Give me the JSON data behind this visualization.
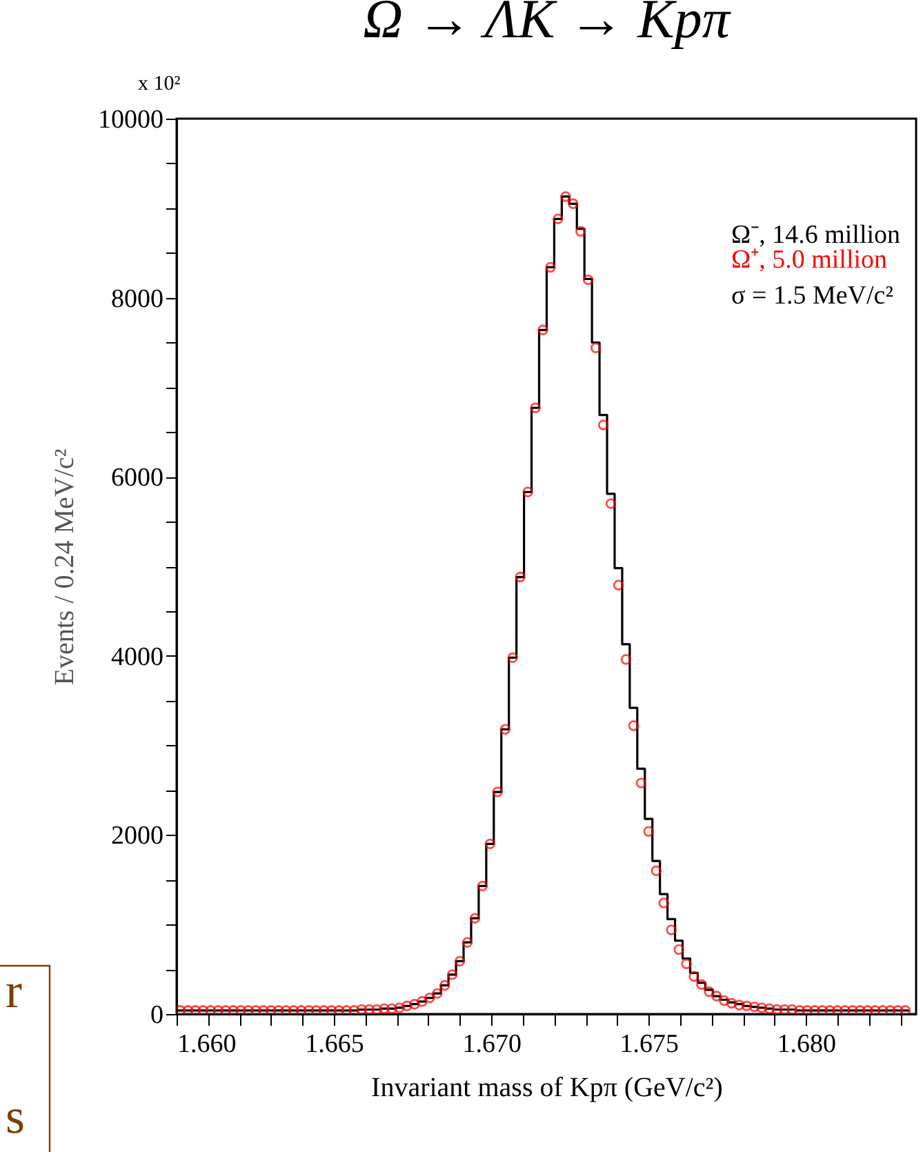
{
  "chart_data": {
    "type": "histogram",
    "title": "Ω → ΛK → Kpπ",
    "xlabel": "Invariant mass of Kpπ  (GeV/c²)",
    "ylabel": "Events / 0.24 MeV/c²",
    "annotations": [
      "x 10²",
      "σ = 1.5 MeV/c²",
      "r",
      "s"
    ],
    "bins": [
      1.66,
      1.66024,
      1.66048,
      1.66072,
      1.66096,
      1.6612,
      1.66144,
      1.66168,
      1.66192,
      1.66216,
      1.6624,
      1.66264,
      1.66288,
      1.66312,
      1.66336,
      1.6636,
      1.66384,
      1.66408,
      1.66432,
      1.66456,
      1.6648,
      1.66504,
      1.66528,
      1.66552,
      1.66576,
      1.666,
      1.66624,
      1.66648,
      1.66672,
      1.66696,
      1.6672,
      1.66744,
      1.66768,
      1.66792,
      1.66816,
      1.6684,
      1.66864,
      1.66888,
      1.66912,
      1.66936,
      1.6696,
      1.66984,
      1.67008,
      1.67032,
      1.67056,
      1.6708,
      1.67104,
      1.67128,
      1.67152,
      1.67176,
      1.672,
      1.67224,
      1.67248,
      1.67272,
      1.67296,
      1.6732,
      1.67344,
      1.67368,
      1.67392,
      1.67416,
      1.6744,
      1.67464,
      1.67488,
      1.67512,
      1.67536,
      1.6756,
      1.67584,
      1.67608,
      1.67632,
      1.67656,
      1.6768,
      1.67704,
      1.67728,
      1.67752,
      1.67776,
      1.678,
      1.67824,
      1.67848,
      1.67872,
      1.67896,
      1.6792,
      1.67944,
      1.67968,
      1.67992,
      1.68016,
      1.6804,
      1.68064,
      1.68088,
      1.68112,
      1.68136,
      1.6816,
      1.68184,
      1.68208,
      1.68232,
      1.68256,
      1.6828,
      1.68304,
      1.68328
    ],
    "series": [
      {
        "name": "Ω⁻, 14.6 million",
        "color": "#000000",
        "values": [
          40,
          40,
          40,
          40,
          40,
          40,
          40,
          40,
          40,
          40,
          40,
          40,
          40,
          40,
          40,
          40,
          40,
          40,
          40,
          40,
          40,
          40,
          40,
          40,
          50,
          50,
          50,
          60,
          60,
          70,
          90,
          110,
          140,
          180,
          230,
          320,
          440,
          590,
          800,
          1070,
          1430,
          1900,
          2480,
          3180,
          3980,
          4880,
          5830,
          6770,
          7640,
          8340,
          8880,
          9130,
          9050,
          8770,
          8210,
          7500,
          6690,
          5810,
          4980,
          4130,
          3420,
          2740,
          2180,
          1710,
          1340,
          1060,
          820,
          620,
          460,
          350,
          270,
          200,
          160,
          130,
          110,
          90,
          80,
          70,
          60,
          50,
          50,
          50,
          40,
          40,
          40,
          40,
          40,
          40,
          40,
          40,
          40,
          40,
          40,
          40,
          40,
          40,
          40
        ]
      },
      {
        "name": "Ω⁺,  5.0 million",
        "color": "#ff0000",
        "type": "scatter",
        "marker": "circle",
        "x": [
          1.66012,
          1.66036,
          1.6606,
          1.66084,
          1.66108,
          1.66132,
          1.66156,
          1.6618,
          1.66204,
          1.66228,
          1.66252,
          1.66276,
          1.663,
          1.66324,
          1.66348,
          1.66372,
          1.66396,
          1.6642,
          1.66444,
          1.66468,
          1.66492,
          1.66516,
          1.6654,
          1.66564,
          1.66588,
          1.66612,
          1.66636,
          1.6666,
          1.66684,
          1.66708,
          1.66732,
          1.66756,
          1.6678,
          1.66804,
          1.66828,
          1.66852,
          1.66876,
          1.669,
          1.66924,
          1.66948,
          1.66972,
          1.66996,
          1.6702,
          1.67044,
          1.67068,
          1.67092,
          1.67116,
          1.6714,
          1.67164,
          1.67188,
          1.67212,
          1.67236,
          1.6726,
          1.67284,
          1.67308,
          1.67332,
          1.67356,
          1.6738,
          1.67404,
          1.67428,
          1.67452,
          1.67476,
          1.675,
          1.67524,
          1.67548,
          1.67572,
          1.67596,
          1.6762,
          1.67644,
          1.67668,
          1.67692,
          1.67716,
          1.6774,
          1.67764,
          1.67788,
          1.67812,
          1.67836,
          1.6786,
          1.67884,
          1.67908,
          1.67932,
          1.67956,
          1.6798,
          1.68004,
          1.68028,
          1.68052,
          1.68076,
          1.681,
          1.68124,
          1.68148,
          1.68172,
          1.68196,
          1.6822,
          1.68244,
          1.68268,
          1.68292,
          1.68316
        ],
        "values": [
          40,
          40,
          40,
          40,
          40,
          40,
          40,
          40,
          40,
          40,
          40,
          40,
          40,
          40,
          40,
          40,
          40,
          40,
          40,
          40,
          40,
          40,
          40,
          40,
          50,
          50,
          50,
          60,
          60,
          70,
          90,
          110,
          140,
          180,
          230,
          320,
          440,
          590,
          800,
          1070,
          1430,
          1900,
          2480,
          3180,
          3980,
          4880,
          5830,
          6770,
          7640,
          8340,
          8880,
          9130,
          9050,
          8740,
          8200,
          7440,
          6580,
          5700,
          4790,
          3960,
          3220,
          2580,
          2040,
          1600,
          1240,
          940,
          720,
          560,
          420,
          330,
          250,
          200,
          150,
          120,
          100,
          90,
          80,
          70,
          60,
          50,
          50,
          50,
          40,
          40,
          40,
          40,
          40,
          40,
          40,
          40,
          40,
          40,
          40,
          40,
          40,
          40,
          40
        ]
      }
    ],
    "xlim": [
      1.66,
      1.6835
    ],
    "xticks": [
      {
        "value": 1.66,
        "label": "1.660"
      },
      {
        "value": 1.661,
        "label": null
      },
      {
        "value": 1.662,
        "label": null
      },
      {
        "value": 1.663,
        "label": null
      },
      {
        "value": 1.664,
        "label": null
      },
      {
        "value": 1.665,
        "label": "1.665"
      },
      {
        "value": 1.666,
        "label": null
      },
      {
        "value": 1.667,
        "label": null
      },
      {
        "value": 1.668,
        "label": null
      },
      {
        "value": 1.669,
        "label": null
      },
      {
        "value": 1.67,
        "label": "1.670"
      },
      {
        "value": 1.671,
        "label": null
      },
      {
        "value": 1.672,
        "label": null
      },
      {
        "value": 1.673,
        "label": null
      },
      {
        "value": 1.674,
        "label": null
      },
      {
        "value": 1.675,
        "label": "1.675"
      },
      {
        "value": 1.676,
        "label": null
      },
      {
        "value": 1.677,
        "label": null
      },
      {
        "value": 1.678,
        "label": null
      },
      {
        "value": 1.679,
        "label": null
      },
      {
        "value": 1.68,
        "label": "1.680"
      },
      {
        "value": 1.681,
        "label": null
      },
      {
        "value": 1.682,
        "label": null
      },
      {
        "value": 1.683,
        "label": null
      }
    ],
    "ylim": [
      0,
      10000
    ],
    "yticks": [
      0,
      {
        "value": 500,
        "label": null
      },
      {
        "value": 1000,
        "label": null
      },
      {
        "value": 1500,
        "label": null
      },
      2000,
      {
        "value": 2500,
        "label": null
      },
      {
        "value": 3000,
        "label": null
      },
      {
        "value": 3500,
        "label": null
      },
      4000,
      {
        "value": 4500,
        "label": null
      },
      {
        "value": 5000,
        "label": null
      },
      {
        "value": 5500,
        "label": null
      },
      6000,
      {
        "value": 6500,
        "label": null
      },
      {
        "value": 7000,
        "label": null
      },
      {
        "value": 7500,
        "label": null
      },
      8000,
      {
        "value": 8500,
        "label": null
      },
      {
        "value": 9000,
        "label": null
      },
      {
        "value": 9500,
        "label": null
      },
      10000
    ]
  }
}
